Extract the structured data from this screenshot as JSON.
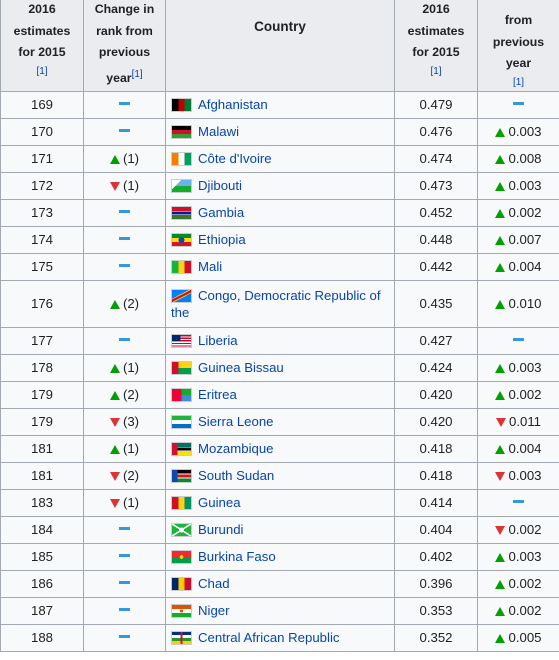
{
  "header": {
    "prev_value_lines": [
      "2016",
      "estimates",
      "for 2015"
    ],
    "prev_value_cite": "[1]",
    "rank_change_lines": [
      "Change in",
      "rank from",
      "previous",
      "year"
    ],
    "rank_change_cite": "[1]",
    "country": "Country",
    "hdi_lines": [
      "2016",
      "estimates",
      "for 2015"
    ],
    "hdi_cite": "[1]",
    "hdi_change_lines": [
      "from",
      "previous",
      "year"
    ],
    "hdi_change_cite": "[1]"
  },
  "rows": [
    {
      "rank": "169",
      "rank_trend": "steady",
      "rank_change": "",
      "country": "Afghanistan",
      "flag_icon": "flag-afghanistan-icon",
      "hdi": "0.479",
      "hdi_trend": "steady",
      "hdi_change": ""
    },
    {
      "rank": "170",
      "rank_trend": "steady",
      "rank_change": "",
      "country": "Malawi",
      "flag_icon": "flag-malawi-icon",
      "hdi": "0.476",
      "hdi_trend": "up",
      "hdi_change": "0.003"
    },
    {
      "rank": "171",
      "rank_trend": "up",
      "rank_change": "(1)",
      "country": "Côte d'Ivoire",
      "flag_icon": "flag-cote-divoire-icon",
      "hdi": "0.474",
      "hdi_trend": "up",
      "hdi_change": "0.008"
    },
    {
      "rank": "172",
      "rank_trend": "down",
      "rank_change": "(1)",
      "country": "Djibouti",
      "flag_icon": "flag-djibouti-icon",
      "hdi": "0.473",
      "hdi_trend": "up",
      "hdi_change": "0.003"
    },
    {
      "rank": "173",
      "rank_trend": "steady",
      "rank_change": "",
      "country": "Gambia",
      "flag_icon": "flag-gambia-icon",
      "hdi": "0.452",
      "hdi_trend": "up",
      "hdi_change": "0.002"
    },
    {
      "rank": "174",
      "rank_trend": "steady",
      "rank_change": "",
      "country": "Ethiopia",
      "flag_icon": "flag-ethiopia-icon",
      "hdi": "0.448",
      "hdi_trend": "up",
      "hdi_change": "0.007"
    },
    {
      "rank": "175",
      "rank_trend": "steady",
      "rank_change": "",
      "country": "Mali",
      "flag_icon": "flag-mali-icon",
      "hdi": "0.442",
      "hdi_trend": "up",
      "hdi_change": "0.004"
    },
    {
      "rank": "176",
      "rank_trend": "up",
      "rank_change": "(2)",
      "country": "Congo, Democratic Republic of the",
      "flag_icon": "flag-dr-congo-icon",
      "hdi": "0.435",
      "hdi_trend": "up",
      "hdi_change": "0.010"
    },
    {
      "rank": "177",
      "rank_trend": "steady",
      "rank_change": "",
      "country": "Liberia",
      "flag_icon": "flag-liberia-icon",
      "hdi": "0.427",
      "hdi_trend": "steady",
      "hdi_change": ""
    },
    {
      "rank": "178",
      "rank_trend": "up",
      "rank_change": "(1)",
      "country": "Guinea Bissau",
      "flag_icon": "flag-guinea-bissau-icon",
      "hdi": "0.424",
      "hdi_trend": "up",
      "hdi_change": "0.003"
    },
    {
      "rank": "179",
      "rank_trend": "up",
      "rank_change": "(2)",
      "country": "Eritrea",
      "flag_icon": "flag-eritrea-icon",
      "hdi": "0.420",
      "hdi_trend": "up",
      "hdi_change": "0.002"
    },
    {
      "rank": "179",
      "rank_trend": "down",
      "rank_change": "(3)",
      "country": "Sierra Leone",
      "flag_icon": "flag-sierra-leone-icon",
      "hdi": "0.420",
      "hdi_trend": "down",
      "hdi_change": "0.011"
    },
    {
      "rank": "181",
      "rank_trend": "up",
      "rank_change": "(1)",
      "country": "Mozambique",
      "flag_icon": "flag-mozambique-icon",
      "hdi": "0.418",
      "hdi_trend": "up",
      "hdi_change": "0.004"
    },
    {
      "rank": "181",
      "rank_trend": "down",
      "rank_change": "(2)",
      "country": "South Sudan",
      "flag_icon": "flag-south-sudan-icon",
      "hdi": "0.418",
      "hdi_trend": "down",
      "hdi_change": "0.003"
    },
    {
      "rank": "183",
      "rank_trend": "down",
      "rank_change": "(1)",
      "country": "Guinea",
      "flag_icon": "flag-guinea-icon",
      "hdi": "0.414",
      "hdi_trend": "steady",
      "hdi_change": ""
    },
    {
      "rank": "184",
      "rank_trend": "steady",
      "rank_change": "",
      "country": "Burundi",
      "flag_icon": "flag-burundi-icon",
      "hdi": "0.404",
      "hdi_trend": "down",
      "hdi_change": "0.002"
    },
    {
      "rank": "185",
      "rank_trend": "steady",
      "rank_change": "",
      "country": "Burkina Faso",
      "flag_icon": "flag-burkina-faso-icon",
      "hdi": "0.402",
      "hdi_trend": "up",
      "hdi_change": "0.003"
    },
    {
      "rank": "186",
      "rank_trend": "steady",
      "rank_change": "",
      "country": "Chad",
      "flag_icon": "flag-chad-icon",
      "hdi": "0.396",
      "hdi_trend": "up",
      "hdi_change": "0.002"
    },
    {
      "rank": "187",
      "rank_trend": "steady",
      "rank_change": "",
      "country": "Niger",
      "flag_icon": "flag-niger-icon",
      "hdi": "0.353",
      "hdi_trend": "up",
      "hdi_change": "0.002"
    },
    {
      "rank": "188",
      "rank_trend": "steady",
      "rank_change": "",
      "country": "Central African Republic",
      "flag_icon": "flag-central-african-republic-icon",
      "hdi": "0.352",
      "hdi_trend": "up",
      "hdi_change": "0.005"
    }
  ],
  "colors": {
    "up": "#00a000",
    "down": "#dd3333",
    "steady": "#3399dd",
    "link": "#0645ad",
    "header_bg": "#eaecf0",
    "cell_bg": "#f8f9fa",
    "border": "#a2a9b1"
  }
}
